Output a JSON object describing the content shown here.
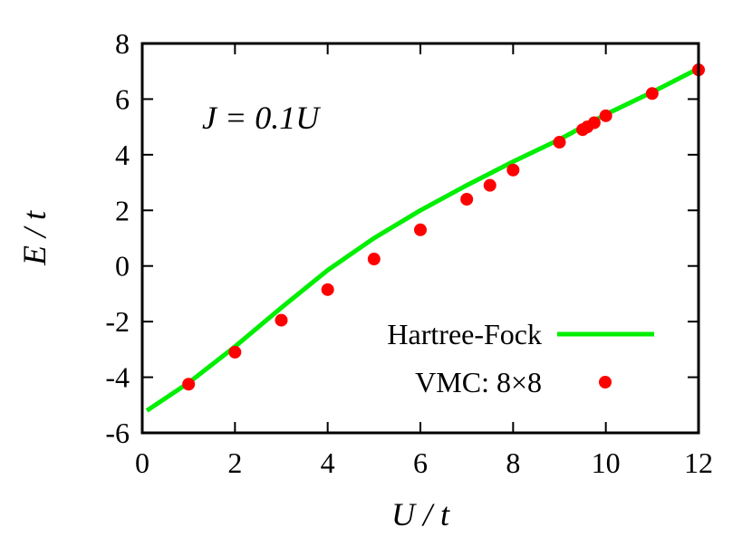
{
  "chart_data": {
    "type": "line",
    "xlabel": "U / t",
    "ylabel": "E / t",
    "xlim": [
      0,
      12
    ],
    "ylim": [
      -6,
      8
    ],
    "xticks": [
      0,
      2,
      4,
      6,
      8,
      10,
      12
    ],
    "yticks": [
      -6,
      -4,
      -2,
      0,
      2,
      4,
      6,
      8
    ],
    "annotation": "J = 0.1U",
    "grid": false,
    "legend_position": "bottom-right",
    "colors": {
      "line": "#00ee00",
      "points": "#ff0000",
      "axes": "#000000"
    },
    "series": [
      {
        "name": "Hartree-Fock",
        "kind": "line",
        "x": [
          0.1,
          1.0,
          2.0,
          3.0,
          4.0,
          5.0,
          6.0,
          7.0,
          8.0,
          9.0,
          10.0,
          11.0,
          12.0
        ],
        "y": [
          -5.2,
          -4.2,
          -2.9,
          -1.5,
          -0.15,
          1.0,
          2.0,
          2.9,
          3.75,
          4.55,
          5.45,
          6.25,
          7.1
        ]
      },
      {
        "name": "VMC: 8×8",
        "kind": "scatter",
        "x": [
          1,
          2,
          3,
          4,
          5,
          6,
          7,
          7.5,
          8,
          9,
          9.5,
          9.6,
          9.75,
          10,
          11,
          12
        ],
        "y": [
          -4.25,
          -3.1,
          -1.95,
          -0.85,
          0.25,
          1.3,
          2.4,
          2.9,
          3.45,
          4.45,
          4.9,
          5.0,
          5.15,
          5.4,
          6.2,
          7.05
        ]
      }
    ]
  }
}
